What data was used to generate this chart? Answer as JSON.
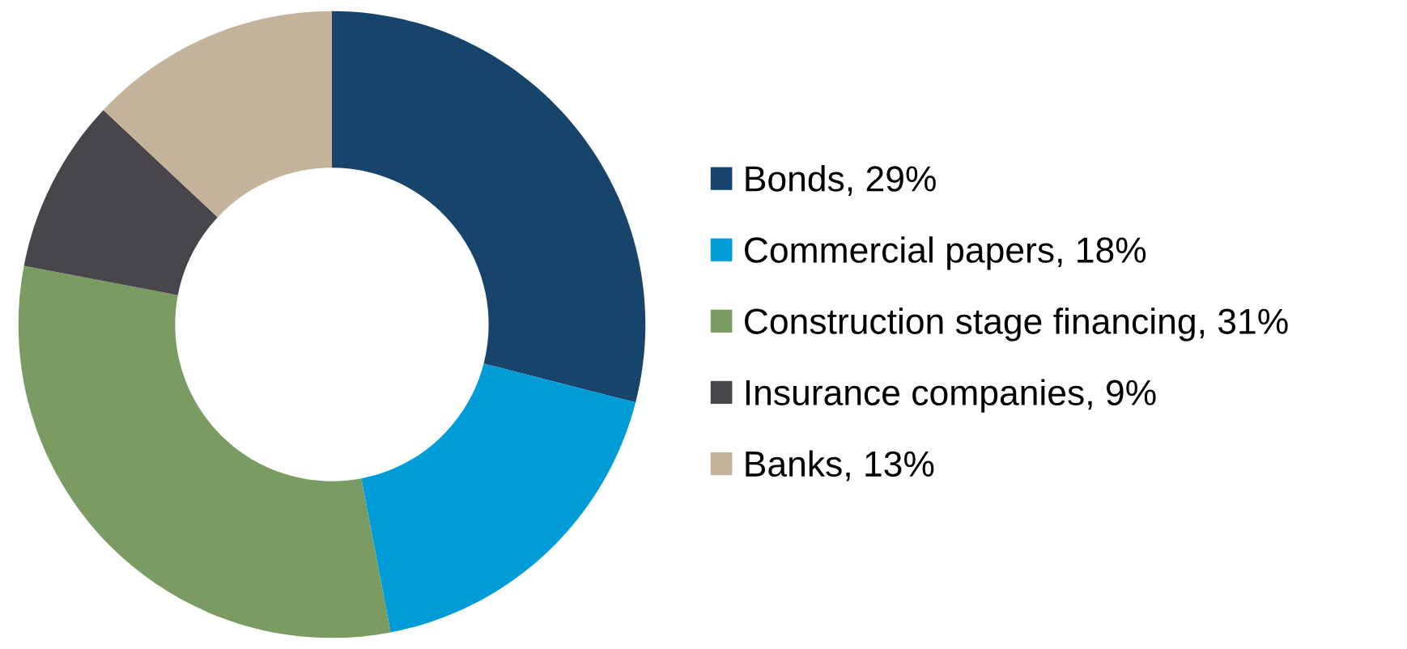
{
  "chart_data": {
    "type": "donut",
    "categories": [
      "Bonds",
      "Commercial papers",
      "Construction stage financing",
      "Insurance companies",
      "Banks"
    ],
    "values": [
      29,
      18,
      31,
      9,
      13
    ],
    "value_labels": [
      "29%",
      "18%",
      "31%",
      "9%",
      "13%"
    ],
    "colors": [
      "#17446b",
      "#009cd7",
      "#7a9c62",
      "#48464b",
      "#c4b39a"
    ],
    "legend": "right"
  }
}
